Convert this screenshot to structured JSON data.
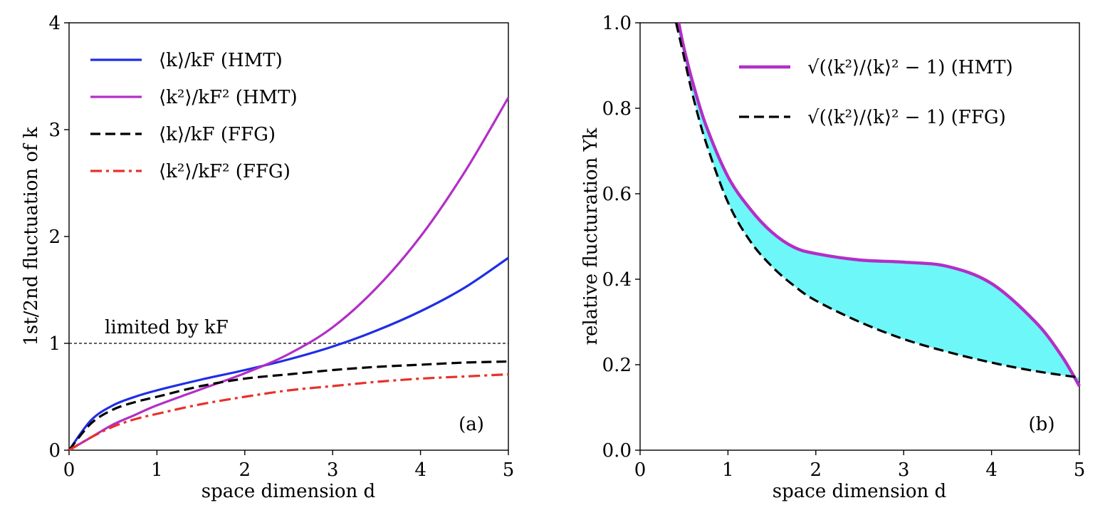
{
  "chart_data": [
    {
      "type": "line",
      "panel_label": "(a)",
      "xlabel": "space dimension d",
      "ylabel": "1st/2nd fluctuation of k",
      "xlim": [
        0,
        5
      ],
      "ylim": [
        0,
        4
      ],
      "xticks": [
        "0",
        "1",
        "2",
        "3",
        "4",
        "5"
      ],
      "yticks": [
        "0",
        "1",
        "2",
        "3",
        "4"
      ],
      "legend_position": "top-left",
      "reference_line": {
        "y": 1,
        "label": "limited by kF",
        "style": "dashed"
      },
      "series": [
        {
          "name": "⟨k⟩/kF (HMT)",
          "color": "#1f2ee6",
          "style": "solid",
          "x": [
            0,
            0.25,
            0.5,
            0.75,
            1,
            1.5,
            2,
            2.5,
            3,
            3.5,
            4,
            4.5,
            5
          ],
          "y": [
            0,
            0.28,
            0.42,
            0.5,
            0.56,
            0.66,
            0.75,
            0.85,
            0.97,
            1.12,
            1.3,
            1.52,
            1.8
          ]
        },
        {
          "name": "⟨k²⟩/kF² (HMT)",
          "color": "#b22fc6",
          "style": "solid",
          "x": [
            0,
            0.25,
            0.5,
            0.75,
            1,
            1.5,
            2,
            2.5,
            3,
            3.5,
            4,
            4.5,
            5
          ],
          "y": [
            0,
            0.12,
            0.24,
            0.33,
            0.42,
            0.57,
            0.72,
            0.9,
            1.15,
            1.52,
            2.0,
            2.6,
            3.3
          ]
        },
        {
          "name": "⟨k⟩/kF (FFG)",
          "color": "#000000",
          "style": "dashed",
          "x": [
            0,
            0.25,
            0.5,
            0.75,
            1,
            1.5,
            2,
            2.5,
            3,
            3.5,
            4,
            4.5,
            5
          ],
          "y": [
            0,
            0.25,
            0.38,
            0.45,
            0.5,
            0.6,
            0.67,
            0.71,
            0.75,
            0.78,
            0.8,
            0.82,
            0.83
          ]
        },
        {
          "name": "⟨k²⟩/kF² (FFG)",
          "color": "#e8312a",
          "style": "dashdot",
          "x": [
            0,
            0.25,
            0.5,
            0.75,
            1,
            1.5,
            2,
            2.5,
            3,
            3.5,
            4,
            4.5,
            5
          ],
          "y": [
            0,
            0.12,
            0.22,
            0.29,
            0.34,
            0.43,
            0.5,
            0.56,
            0.6,
            0.64,
            0.67,
            0.69,
            0.71
          ]
        }
      ]
    },
    {
      "type": "area",
      "panel_label": "(b)",
      "xlabel": "space dimension d",
      "ylabel": "relative flucturation Υk",
      "xlim": [
        0,
        5
      ],
      "ylim": [
        0.0,
        1.0
      ],
      "xticks": [
        "0",
        "1",
        "2",
        "3",
        "4",
        "5"
      ],
      "yticks": [
        "0.0",
        "0.2",
        "0.4",
        "0.6",
        "0.8",
        "1.0"
      ],
      "legend_position": "top-right",
      "fill_between_color": "#6ef7f9",
      "series": [
        {
          "name": "√(⟨k²⟩/⟨k⟩² − 1) (HMT)",
          "color": "#b22fc6",
          "style": "solid",
          "x": [
            0.44,
            0.5,
            0.6,
            0.75,
            1,
            1.25,
            1.5,
            1.75,
            2,
            2.5,
            3,
            3.5,
            4,
            4.5,
            4.8,
            5
          ],
          "y": [
            1.0,
            0.94,
            0.86,
            0.76,
            0.64,
            0.565,
            0.51,
            0.475,
            0.46,
            0.445,
            0.44,
            0.43,
            0.39,
            0.3,
            0.22,
            0.15
          ]
        },
        {
          "name": "√(⟨k²⟩/⟨k⟩² − 1) (FFG)",
          "color": "#000000",
          "style": "dashed",
          "x": [
            0.41,
            0.5,
            0.6,
            0.75,
            1,
            1.25,
            1.5,
            1.75,
            2,
            2.5,
            3,
            3.5,
            4,
            4.5,
            5
          ],
          "y": [
            1.0,
            0.92,
            0.83,
            0.72,
            0.58,
            0.49,
            0.43,
            0.385,
            0.35,
            0.3,
            0.26,
            0.23,
            0.205,
            0.185,
            0.17
          ]
        }
      ]
    }
  ]
}
